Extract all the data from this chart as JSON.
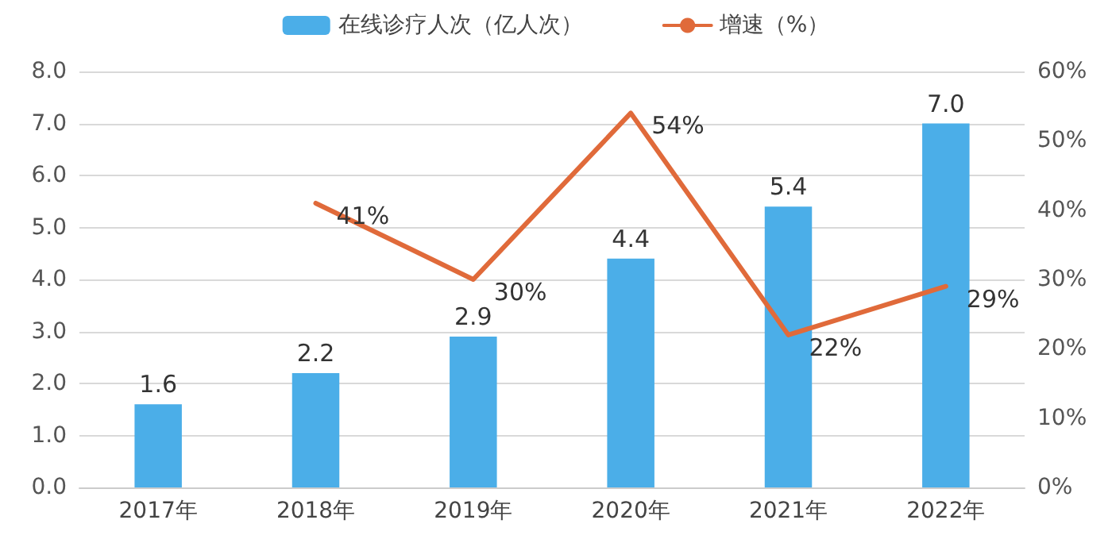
{
  "chart_data": {
    "type": "bar",
    "categories": [
      "2017年",
      "2018年",
      "2019年",
      "2020年",
      "2021年",
      "2022年"
    ],
    "series": [
      {
        "name": "在线诊疗人次（亿人次）",
        "color": "#4baee8",
        "values": [
          1.6,
          2.2,
          2.9,
          4.4,
          5.4,
          7.0
        ],
        "value_labels": [
          "1.6",
          "2.2",
          "2.9",
          "4.4",
          "5.4",
          "7.0"
        ]
      },
      {
        "name": "增速（%）",
        "type": "line",
        "axis": "y2",
        "color": "#e06a3a",
        "values": [
          null,
          41,
          30,
          54,
          22,
          29
        ],
        "value_labels": [
          null,
          "41%",
          "30%",
          "54%",
          "22%",
          "29%"
        ]
      }
    ],
    "ylim": [
      0,
      8
    ],
    "yticks": [
      {
        "value": 0,
        "label": "0.0"
      },
      {
        "value": 1,
        "label": "1.0"
      },
      {
        "value": 2,
        "label": "2.0"
      },
      {
        "value": 3,
        "label": "3.0"
      },
      {
        "value": 4,
        "label": "4.0"
      },
      {
        "value": 5,
        "label": "5.0"
      },
      {
        "value": 6,
        "label": "6.0"
      },
      {
        "value": 7,
        "label": "7.0"
      },
      {
        "value": 8,
        "label": "8.0"
      }
    ],
    "y2lim": [
      0,
      60
    ],
    "y2ticks": [
      {
        "value": 0,
        "label": "0%"
      },
      {
        "value": 10,
        "label": "10%"
      },
      {
        "value": 20,
        "label": "20%"
      },
      {
        "value": 30,
        "label": "30%"
      },
      {
        "value": 40,
        "label": "40%"
      },
      {
        "value": 50,
        "label": "50%"
      },
      {
        "value": 60,
        "label": "60%"
      }
    ],
    "grid": "y",
    "legend": "top",
    "marker": "none",
    "line_style": "solid"
  }
}
